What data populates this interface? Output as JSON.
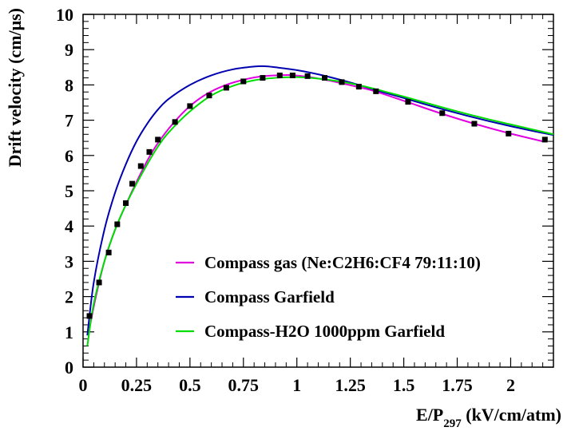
{
  "chart_data": {
    "type": "line",
    "xlabel": {
      "main": "E/P",
      "sub": "297",
      "tail": " (kV/cm/atm)"
    },
    "ylabel": "Drift velocity (cm/μs)",
    "xlim": [
      0,
      2.2
    ],
    "ylim": [
      0,
      10
    ],
    "x_ticks": [
      0,
      0.25,
      0.5,
      0.75,
      1,
      1.25,
      1.5,
      1.75,
      2
    ],
    "x_tick_labels": [
      "0",
      "0.25",
      "0.5",
      "0.75",
      "1",
      "1.25",
      "1.5",
      "1.75",
      "2"
    ],
    "y_ticks": [
      0,
      1,
      2,
      3,
      4,
      5,
      6,
      7,
      8,
      9,
      10
    ],
    "y_tick_labels": [
      "0",
      "1",
      "2",
      "3",
      "4",
      "5",
      "6",
      "7",
      "8",
      "9",
      "10"
    ],
    "grid": false,
    "legend_position": "bottom-right",
    "series": [
      {
        "name": "Compass  gas (Ne:C2H6:CF4 79:11:10)",
        "color": "#e000e0",
        "x": [
          0.03,
          0.06,
          0.1,
          0.15,
          0.2,
          0.25,
          0.3,
          0.35,
          0.42,
          0.5,
          0.58,
          0.66,
          0.74,
          0.82,
          0.9,
          0.97,
          1.05,
          1.13,
          1.2,
          1.28,
          1.36,
          1.5,
          1.67,
          1.83,
          1.98,
          2.15
        ],
        "values": [
          1.1,
          2.0,
          3.0,
          3.9,
          4.6,
          5.25,
          5.85,
          6.35,
          6.9,
          7.4,
          7.75,
          7.98,
          8.13,
          8.23,
          8.27,
          8.28,
          8.23,
          8.15,
          8.06,
          7.95,
          7.83,
          7.55,
          7.2,
          6.9,
          6.65,
          6.4
        ]
      },
      {
        "name": "Compass  Garfield",
        "color": "#0000b0",
        "x": [
          0.02,
          0.05,
          0.1,
          0.15,
          0.2,
          0.25,
          0.3,
          0.35,
          0.4,
          0.5,
          0.6,
          0.7,
          0.8,
          0.85,
          0.9,
          1.0,
          1.1,
          1.2,
          1.3,
          1.4,
          1.5,
          1.6,
          1.7,
          1.8,
          1.9,
          2.0,
          2.1,
          2.2
        ],
        "values": [
          0.9,
          2.4,
          3.9,
          4.95,
          5.75,
          6.4,
          6.9,
          7.3,
          7.6,
          8.0,
          8.27,
          8.44,
          8.52,
          8.53,
          8.5,
          8.42,
          8.3,
          8.15,
          7.98,
          7.8,
          7.63,
          7.45,
          7.28,
          7.12,
          6.97,
          6.83,
          6.7,
          6.58
        ]
      },
      {
        "name": "Compass-H2O 1000ppm Garfield",
        "color": "#00dd00",
        "x": [
          0.02,
          0.05,
          0.1,
          0.15,
          0.2,
          0.25,
          0.3,
          0.35,
          0.4,
          0.5,
          0.6,
          0.7,
          0.8,
          0.9,
          1.0,
          1.1,
          1.2,
          1.3,
          1.4,
          1.5,
          1.6,
          1.7,
          1.8,
          1.9,
          2.0,
          2.1,
          2.2
        ],
        "values": [
          0.6,
          1.8,
          3.0,
          3.9,
          4.6,
          5.2,
          5.75,
          6.25,
          6.65,
          7.25,
          7.7,
          7.97,
          8.13,
          8.2,
          8.22,
          8.18,
          8.1,
          7.98,
          7.83,
          7.67,
          7.5,
          7.33,
          7.17,
          7.02,
          6.88,
          6.74,
          6.6
        ]
      },
      {
        "type": "scatter",
        "marker": "square",
        "color": "#000000",
        "x": [
          0.03,
          0.075,
          0.12,
          0.16,
          0.2,
          0.23,
          0.27,
          0.31,
          0.35,
          0.43,
          0.5,
          0.59,
          0.67,
          0.75,
          0.84,
          0.92,
          0.98,
          1.05,
          1.13,
          1.21,
          1.29,
          1.37,
          1.52,
          1.68,
          1.83,
          1.99,
          2.16
        ],
        "values": [
          1.45,
          2.4,
          3.25,
          4.05,
          4.65,
          5.2,
          5.7,
          6.1,
          6.45,
          6.95,
          7.4,
          7.7,
          7.92,
          8.1,
          8.2,
          8.27,
          8.27,
          8.25,
          8.2,
          8.08,
          7.95,
          7.82,
          7.52,
          7.2,
          6.9,
          6.62,
          6.45
        ]
      }
    ]
  }
}
